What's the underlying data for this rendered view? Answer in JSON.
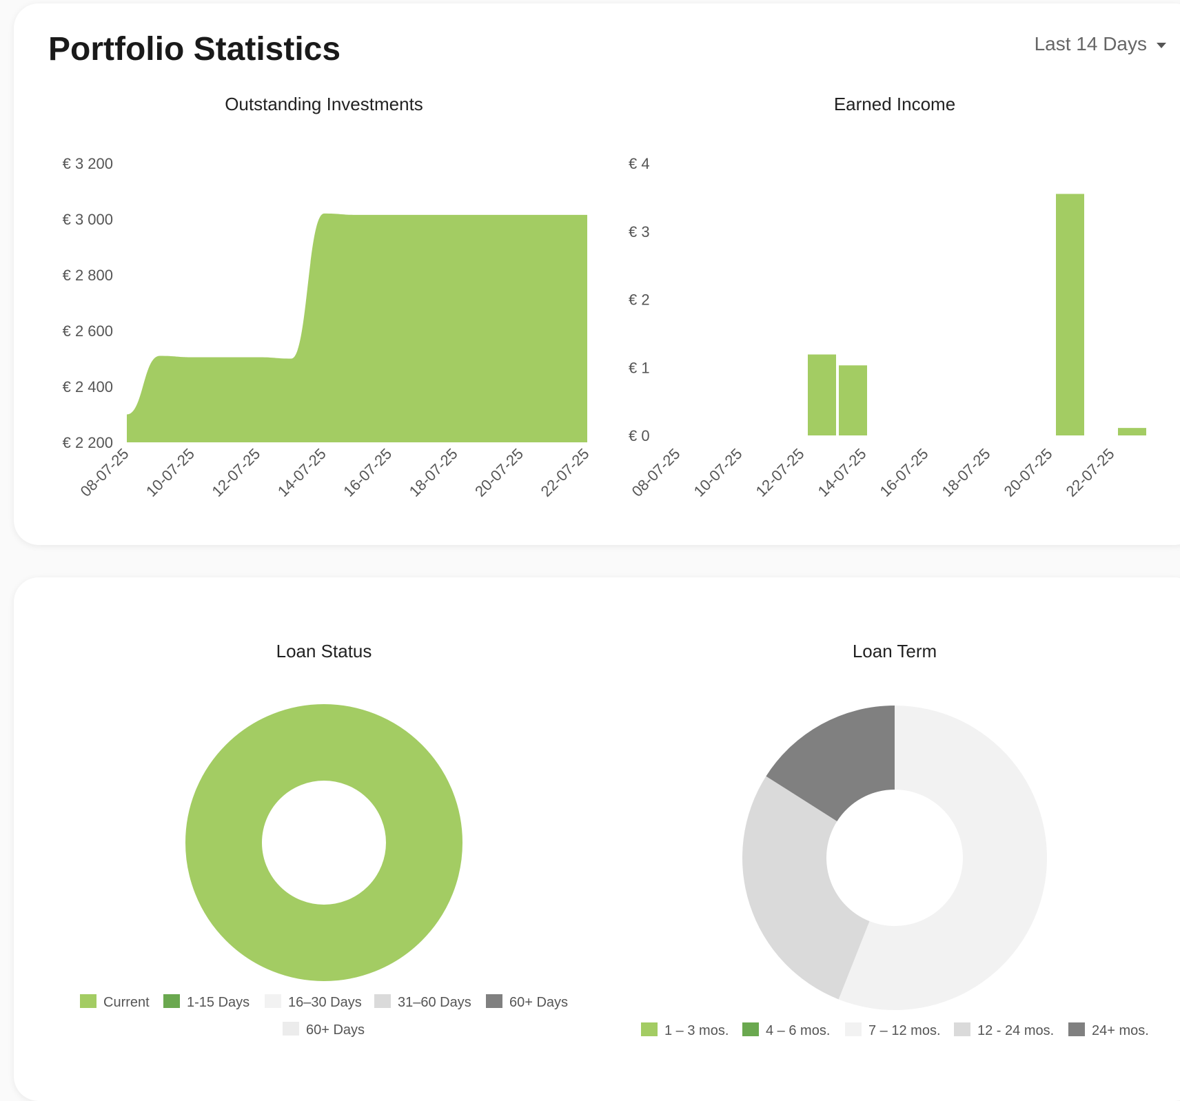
{
  "header": {
    "title": "Portfolio Statistics",
    "range_label": "Last 14 Days"
  },
  "colors": {
    "green": "#a3cc63",
    "dark_green": "#6aa84f",
    "very_light_gray": "#f2f2f2",
    "light_gray": "#dadada",
    "dark_gray": "#808080",
    "hatched_gray": "#ececec"
  },
  "chart_data": [
    {
      "type": "area",
      "title": "Outstanding Investments",
      "x_ticks": [
        "08-07-25",
        "10-07-25",
        "12-07-25",
        "14-07-25",
        "16-07-25",
        "18-07-25",
        "20-07-25",
        "22-07-25"
      ],
      "y_ticks": [
        "€ 3 200",
        "€ 3 000",
        "€ 2 800",
        "€ 2 600",
        "€ 2 400",
        "€ 2 200"
      ],
      "ylim": [
        2200,
        3200
      ],
      "x": [
        "08-07-25",
        "09-07-25",
        "10-07-25",
        "11-07-25",
        "12-07-25",
        "13-07-25",
        "14-07-25",
        "15-07-25",
        "16-07-25",
        "17-07-25",
        "18-07-25",
        "19-07-25",
        "20-07-25",
        "21-07-25",
        "22-07-25"
      ],
      "values": [
        2300,
        2510,
        2505,
        2505,
        2505,
        2500,
        3020,
        3015,
        3015,
        3015,
        3015,
        3015,
        3015,
        3015,
        3015
      ],
      "grid": false
    },
    {
      "type": "bar",
      "title": "Earned Income",
      "x_ticks": [
        "08-07-25",
        "10-07-25",
        "12-07-25",
        "14-07-25",
        "16-07-25",
        "18-07-25",
        "20-07-25",
        "22-07-25"
      ],
      "y_ticks": [
        "€ 4",
        "€ 3",
        "€ 2",
        "€ 1",
        "€ 0"
      ],
      "ylim": [
        0,
        4
      ],
      "x": [
        "08-07-25",
        "09-07-25",
        "10-07-25",
        "11-07-25",
        "12-07-25",
        "13-07-25",
        "14-07-25",
        "15-07-25",
        "16-07-25",
        "17-07-25",
        "18-07-25",
        "19-07-25",
        "20-07-25",
        "21-07-25",
        "22-07-25"
      ],
      "values": [
        0,
        0,
        0,
        0,
        1.19,
        1.03,
        0,
        0,
        0,
        0,
        0,
        0,
        3.55,
        0,
        0.11
      ],
      "grid": false
    },
    {
      "type": "pie",
      "title": "Loan Status",
      "legend_position": "bottom",
      "slices": [
        {
          "label": "Current",
          "value": 100,
          "color": "#a3cc63"
        },
        {
          "label": "1-15 Days",
          "value": 0,
          "color": "#6aa84f"
        },
        {
          "label": "16–30 Days",
          "value": 0,
          "color": "#f2f2f2"
        },
        {
          "label": "31–60 Days",
          "value": 0,
          "color": "#dadada"
        },
        {
          "label": "60+ Days",
          "value": 0,
          "color": "#808080"
        },
        {
          "label": "60+ Days",
          "value": 0,
          "color": "#ececec"
        }
      ]
    },
    {
      "type": "pie",
      "title": "Loan Term",
      "legend_position": "bottom",
      "slices": [
        {
          "label": "1 – 3 mos.",
          "value": 0,
          "color": "#a3cc63"
        },
        {
          "label": "4 – 6 mos.",
          "value": 0,
          "color": "#6aa84f"
        },
        {
          "label": "7 – 12 mos.",
          "value": 56,
          "color": "#f2f2f2"
        },
        {
          "label": "12 - 24 mos.",
          "value": 28,
          "color": "#dadada"
        },
        {
          "label": "24+ mos.",
          "value": 16,
          "color": "#808080"
        }
      ]
    }
  ]
}
